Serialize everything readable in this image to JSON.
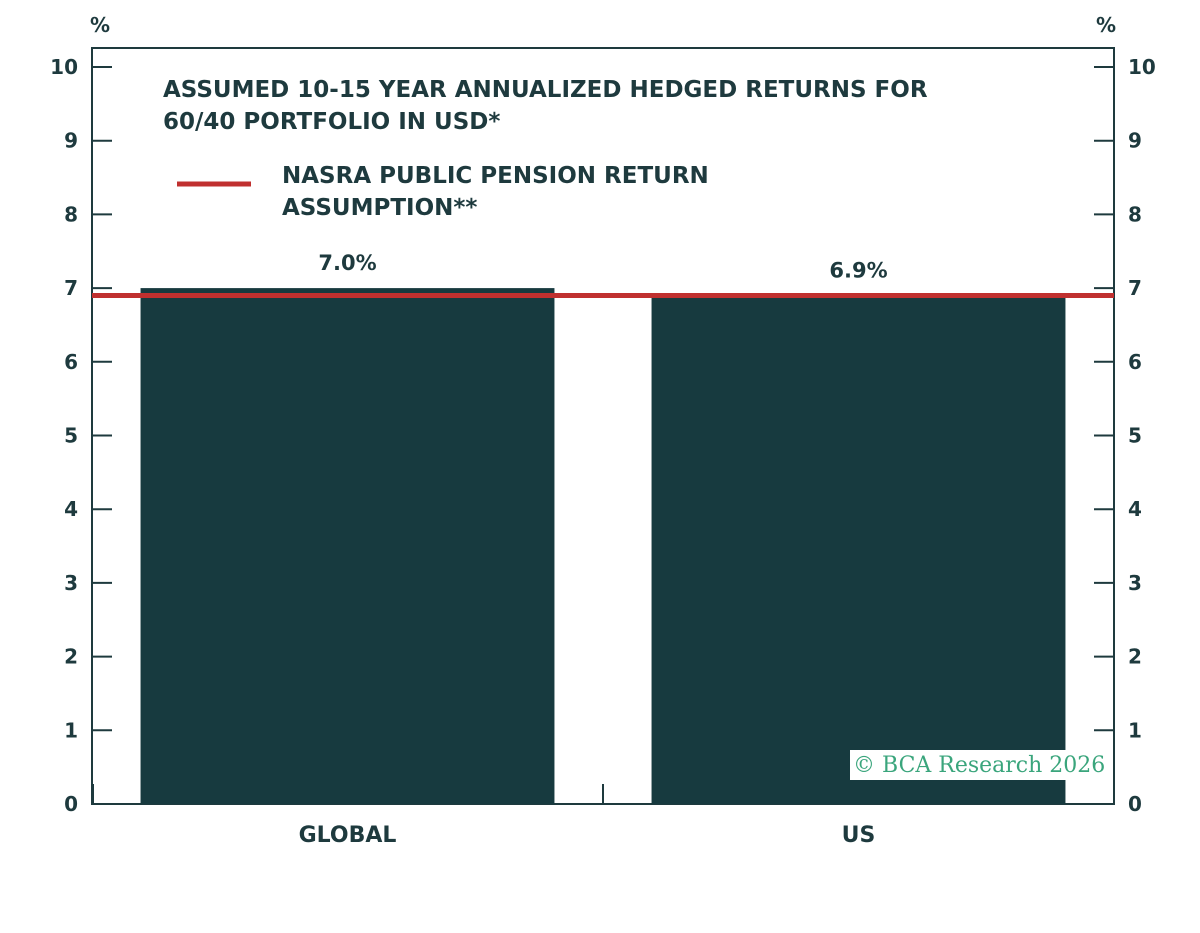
{
  "chart_data": {
    "type": "bar",
    "title": "ASSUMED 10-15 YEAR ANNUALIZED HEDGED RETURNS FOR 60/40 PORTFOLIO IN USD*",
    "title_lines": [
      "ASSUMED 10-15 YEAR ANNUALIZED HEDGED RETURNS FOR",
      "60/40 PORTFOLIO IN USD*"
    ],
    "categories": [
      "GLOBAL",
      "US"
    ],
    "values": [
      7.0,
      6.9
    ],
    "data_labels": [
      "7.0%",
      "6.9%"
    ],
    "reference_line": {
      "value": 6.9,
      "label": "NASRA PUBLIC PENSION RETURN ASSUMPTION**",
      "label_lines": [
        "NASRA PUBLIC PENSION RETURN",
        "ASSUMPTION**"
      ],
      "color": "#c0302f"
    },
    "ylim": [
      0,
      10
    ],
    "yticks": [
      0,
      1,
      2,
      3,
      4,
      5,
      6,
      7,
      8,
      9,
      10
    ],
    "y_unit_left": "%",
    "y_unit_right": "%",
    "bar_color": "#173a3f",
    "axis_color": "#1e3a3e",
    "grid": false,
    "legend_position": "top-left",
    "watermark": "© BCA Research 2026"
  }
}
